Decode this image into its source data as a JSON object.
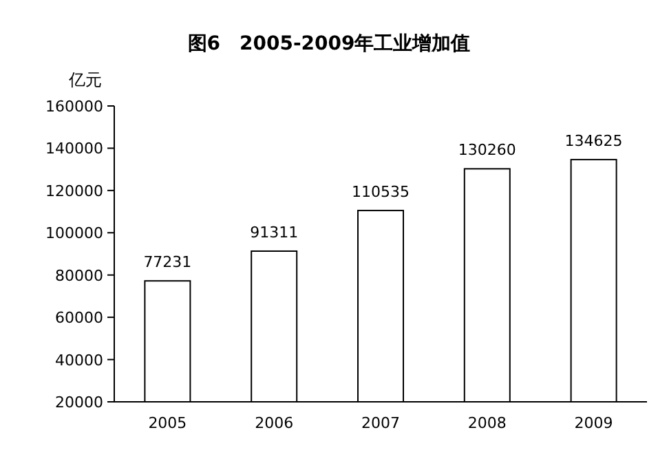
{
  "chart_data": {
    "type": "bar",
    "title": "图6　2005-2009年工业增加值",
    "ylabel": "亿元",
    "categories": [
      "2005",
      "2006",
      "2007",
      "2008",
      "2009"
    ],
    "values": [
      77231,
      91311,
      110535,
      130260,
      134625
    ],
    "color": "#ffffff",
    "ylim": [
      20000,
      160000
    ],
    "yticks": [
      20000,
      40000,
      60000,
      80000,
      100000,
      120000,
      140000,
      160000
    ],
    "data_labels": true
  }
}
